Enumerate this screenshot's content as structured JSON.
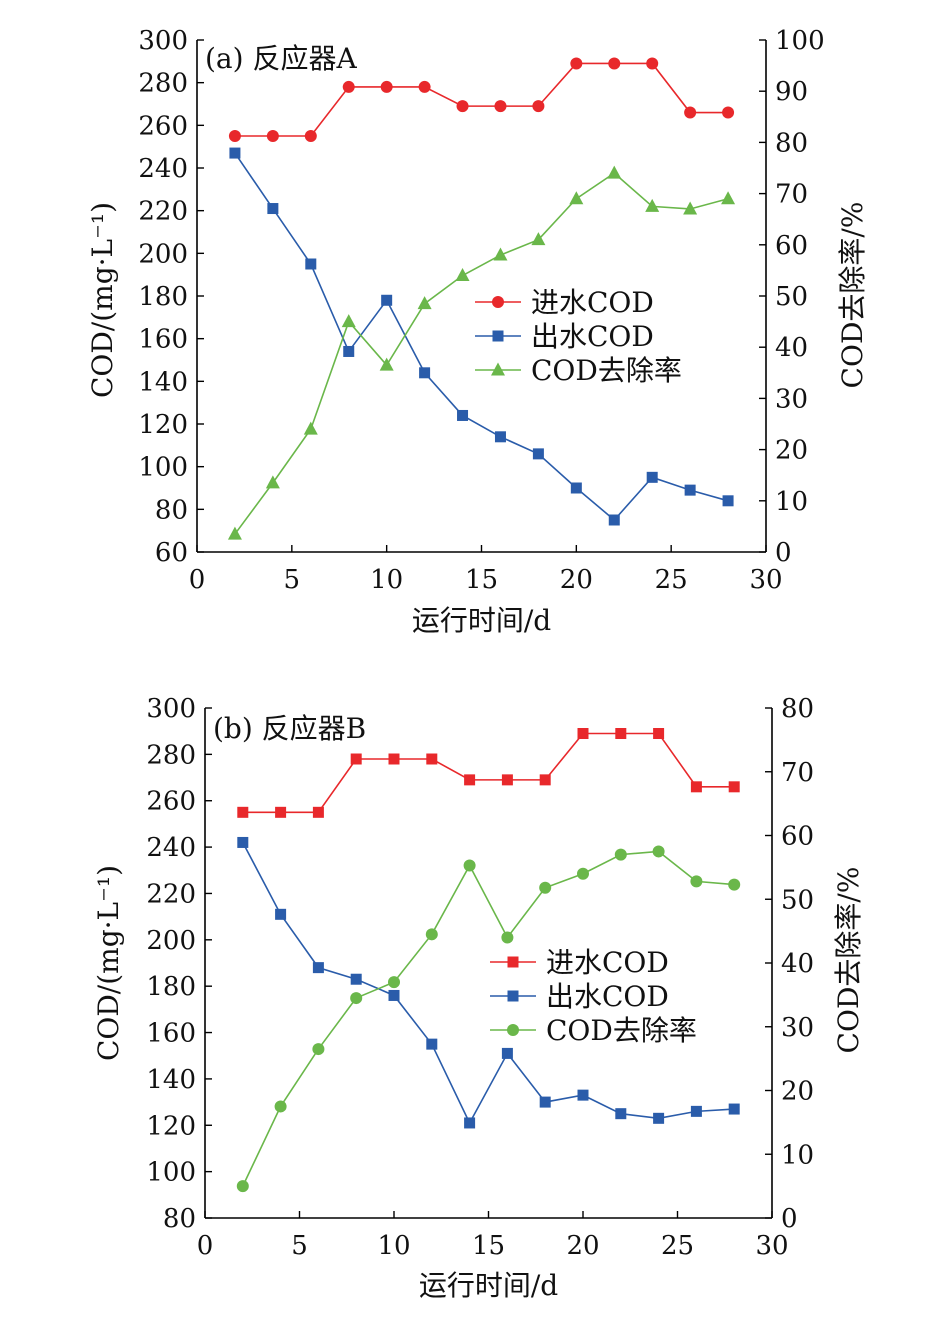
{
  "chart_data": [
    {
      "type": "line",
      "panel_label": "(a)  反应器A",
      "xlabel": "运行时间/d",
      "ylabel": "COD/(mg·L⁻¹)",
      "y2label": "COD去除率/%",
      "xlim": [
        0,
        30
      ],
      "ylim": [
        60,
        300
      ],
      "y2lim": [
        0,
        100
      ],
      "xticks": [
        0,
        5,
        10,
        15,
        20,
        25,
        30
      ],
      "yticks": [
        60,
        80,
        100,
        120,
        140,
        160,
        180,
        200,
        220,
        240,
        260,
        280,
        300
      ],
      "y2ticks": [
        0,
        10,
        20,
        30,
        40,
        50,
        60,
        70,
        80,
        90,
        100
      ],
      "x": [
        2,
        4,
        6,
        8,
        10,
        12,
        14,
        16,
        18,
        20,
        22,
        24,
        26,
        28
      ],
      "legend_position": "right-middle",
      "series": [
        {
          "name": "进水COD",
          "axis": "left",
          "marker": "circle",
          "color": "#e8282b",
          "values": [
            255,
            255,
            255,
            278,
            278,
            278,
            269,
            269,
            269,
            289,
            289,
            289,
            266,
            266
          ]
        },
        {
          "name": "出水COD",
          "axis": "left",
          "marker": "square",
          "color": "#2a5caa",
          "values": [
            247,
            221,
            195,
            154,
            178,
            144,
            124,
            114,
            106,
            90,
            75,
            95,
            89,
            84
          ]
        },
        {
          "name": "COD去除率",
          "axis": "right",
          "marker": "triangle",
          "color": "#6ab74a",
          "values": [
            3.5,
            13.5,
            24,
            45,
            36.5,
            48.5,
            54,
            58,
            61,
            69,
            74,
            67.5,
            67,
            69
          ]
        }
      ]
    },
    {
      "type": "line",
      "panel_label": "(b)  反应器B",
      "xlabel": "运行时间/d",
      "ylabel": "COD/(mg·L⁻¹)",
      "y2label": "COD去除率/%",
      "xlim": [
        0,
        30
      ],
      "ylim": [
        80,
        300
      ],
      "y2lim": [
        0,
        80
      ],
      "xticks": [
        0,
        5,
        10,
        15,
        20,
        25,
        30
      ],
      "yticks": [
        80,
        100,
        120,
        140,
        160,
        180,
        200,
        220,
        240,
        260,
        280,
        300
      ],
      "y2ticks": [
        0,
        10,
        20,
        30,
        40,
        50,
        60,
        70,
        80
      ],
      "x": [
        2,
        4,
        6,
        8,
        10,
        12,
        14,
        16,
        18,
        20,
        22,
        24,
        26,
        28
      ],
      "legend_position": "right-middle",
      "series": [
        {
          "name": "进水COD",
          "axis": "left",
          "marker": "square",
          "color": "#e8282b",
          "values": [
            255,
            255,
            255,
            278,
            278,
            278,
            269,
            269,
            269,
            289,
            289,
            289,
            266,
            266
          ]
        },
        {
          "name": "出水COD",
          "axis": "left",
          "marker": "square",
          "color": "#2a5caa",
          "values": [
            242,
            211,
            188,
            183,
            176,
            155,
            121,
            151,
            130,
            133,
            125,
            123,
            126,
            127
          ]
        },
        {
          "name": "COD去除率",
          "axis": "right",
          "marker": "circle",
          "color": "#6ab74a",
          "values": [
            5,
            17.5,
            26.5,
            34.5,
            37,
            44.5,
            55.3,
            44,
            51.8,
            54,
            57,
            57.5,
            52.8,
            52.3
          ]
        }
      ]
    }
  ]
}
